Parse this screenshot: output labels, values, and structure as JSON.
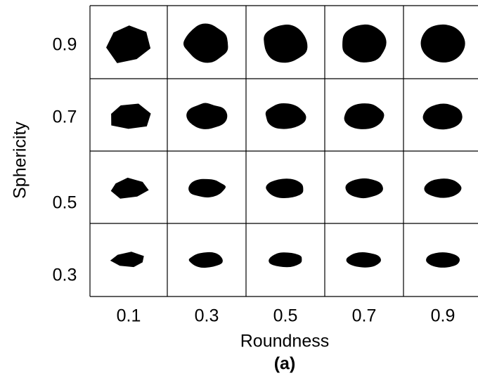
{
  "y_axis": {
    "title": "Sphericity",
    "labels": [
      "0.9",
      "0.7",
      "0.5",
      "0.3"
    ]
  },
  "x_axis": {
    "title": "Roundness",
    "labels": [
      "0.1",
      "0.3",
      "0.5",
      "0.7",
      "0.9"
    ]
  },
  "caption": "(a)"
}
